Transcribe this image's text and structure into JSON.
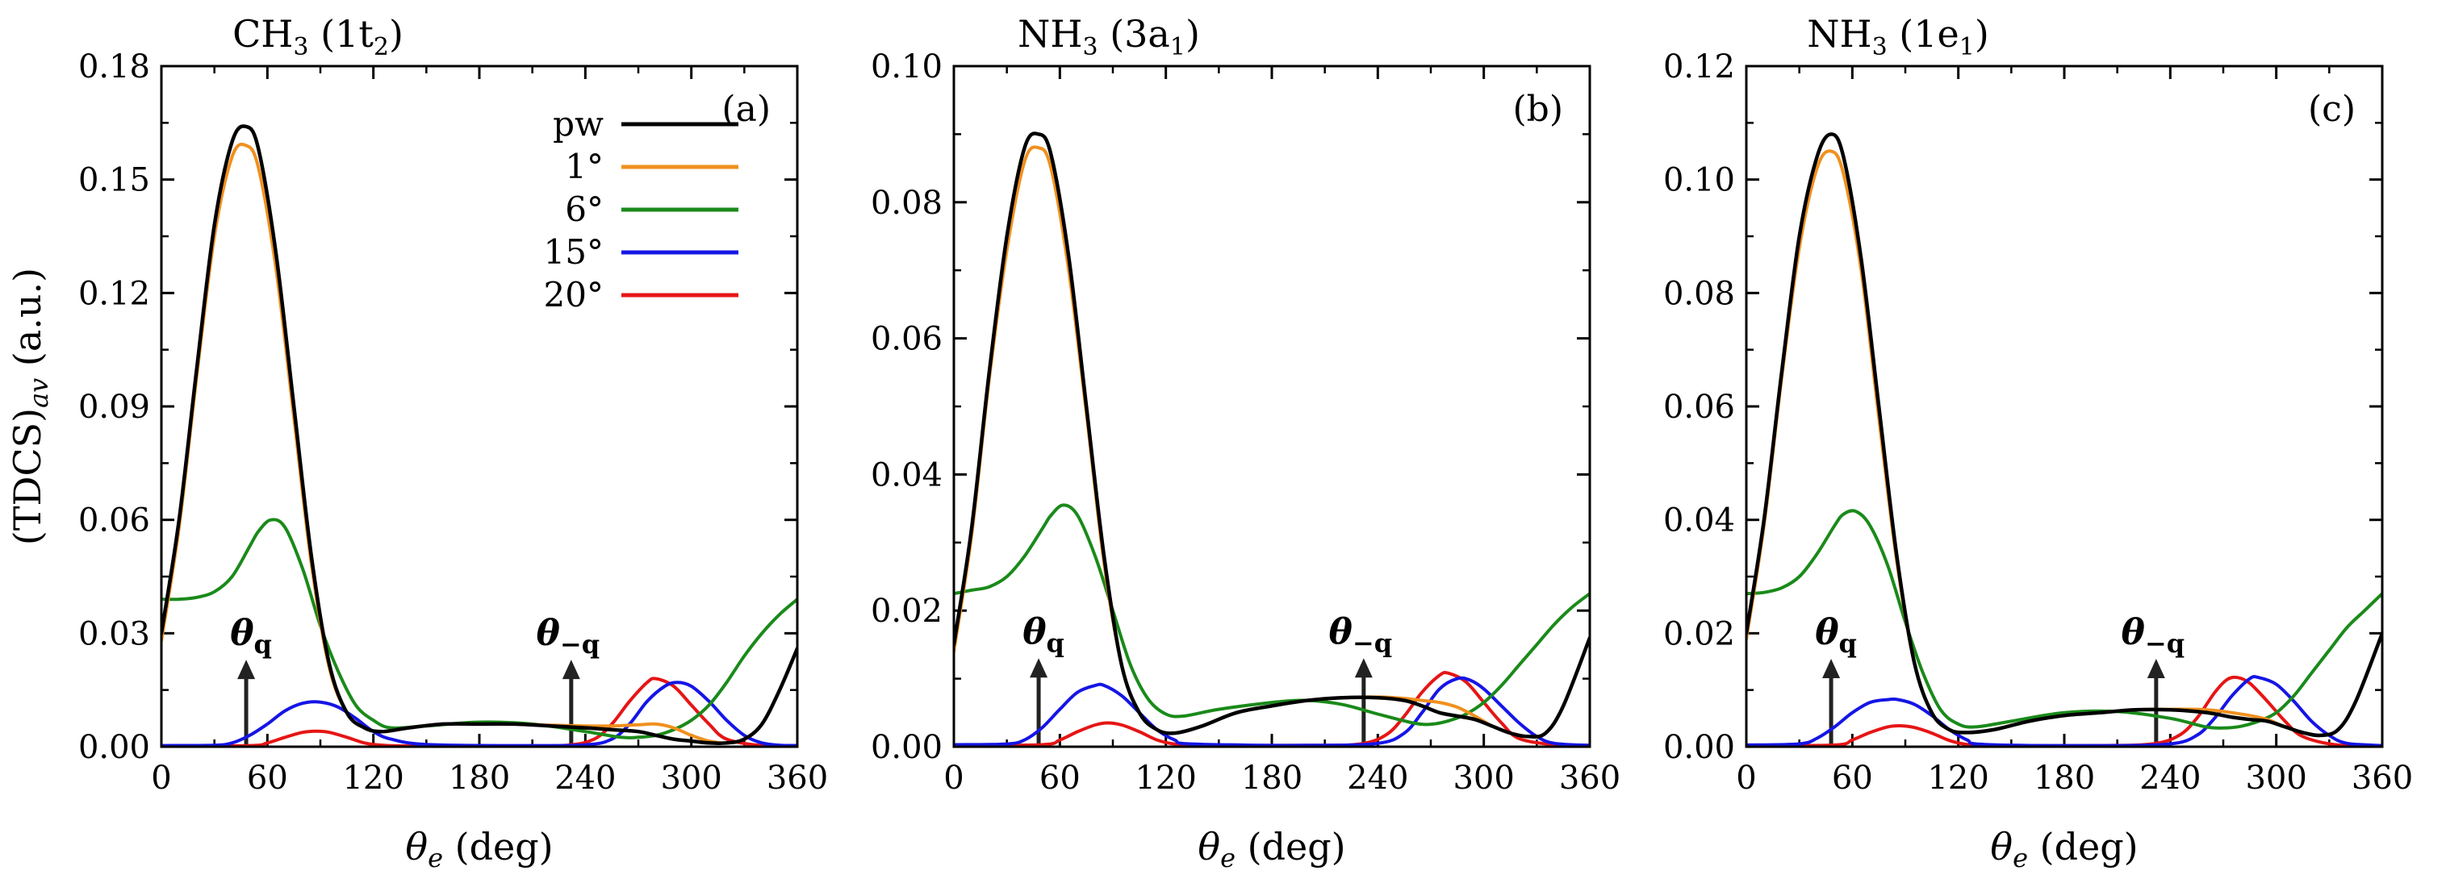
{
  "figure": {
    "ylabel": "(TDCS)",
    "ylabel_sub": "av",
    "ylabel_unit": "(a.u.)",
    "xlabel_symbol": "θ",
    "xlabel_sub": "e",
    "xlabel_unit": "(deg)",
    "anno_q": "θ",
    "anno_q_sub": "q",
    "anno_mq_sub": "−q"
  },
  "legend": {
    "entries": [
      "pw",
      "1°",
      "6°",
      "15°",
      "20°"
    ],
    "colors": [
      "#000000",
      "#f0901e",
      "#1a8a1a",
      "#1515e6",
      "#e61515"
    ]
  },
  "chart_data": [
    {
      "type": "line",
      "title": "CH",
      "title_sub": "3",
      "title_orbital": " (1t",
      "title_orbital_sub": "2",
      "title_close": ")",
      "panel_label": "(a)",
      "xlabel": "θe (deg)",
      "ylabel": "(TDCS)av (a.u.)",
      "xlim": [
        0,
        360
      ],
      "ylim": [
        0,
        0.18
      ],
      "xticks": [
        0,
        60,
        120,
        180,
        240,
        300,
        360
      ],
      "yticks": [
        "0.00",
        "0.03",
        "0.06",
        "0.09",
        "0.12",
        "0.15",
        "0.18"
      ],
      "arrows": [
        {
          "x": 48,
          "y_tip": 0.023,
          "label": "θq"
        },
        {
          "x": 232,
          "y_tip": 0.023,
          "label": "θ−q"
        }
      ],
      "series": [
        {
          "name": "pw",
          "x": [
            0,
            10,
            20,
            30,
            40,
            48,
            55,
            65,
            75,
            85,
            95,
            105,
            115,
            125,
            140,
            160,
            180,
            200,
            220,
            240,
            255,
            270,
            280,
            290,
            300,
            310,
            320,
            330,
            340,
            350,
            360
          ],
          "y": [
            0.03,
            0.06,
            0.1,
            0.138,
            0.16,
            0.164,
            0.158,
            0.13,
            0.09,
            0.05,
            0.022,
            0.009,
            0.005,
            0.004,
            0.005,
            0.006,
            0.006,
            0.006,
            0.0055,
            0.005,
            0.0045,
            0.004,
            0.003,
            0.002,
            0.0015,
            0.001,
            0.001,
            0.002,
            0.006,
            0.015,
            0.026
          ]
        },
        {
          "name": "1°",
          "x": [
            0,
            10,
            20,
            30,
            40,
            48,
            55,
            65,
            75,
            85,
            95,
            105,
            115,
            125,
            140,
            160,
            180,
            200,
            220,
            240,
            255,
            270,
            280,
            290,
            300,
            310,
            320,
            330,
            340,
            350,
            360
          ],
          "y": [
            0.028,
            0.058,
            0.098,
            0.135,
            0.156,
            0.159,
            0.153,
            0.126,
            0.087,
            0.048,
            0.021,
            0.009,
            0.005,
            0.004,
            0.005,
            0.006,
            0.006,
            0.006,
            0.0057,
            0.0055,
            0.0055,
            0.0058,
            0.006,
            0.005,
            0.003,
            0.0015,
            0.001,
            0.002,
            0.006,
            0.015,
            0.026
          ]
        },
        {
          "name": "6°",
          "x": [
            0,
            10,
            20,
            30,
            40,
            50,
            55,
            62,
            70,
            80,
            90,
            100,
            110,
            120,
            130,
            150,
            180,
            210,
            240,
            260,
            270,
            280,
            290,
            300,
            310,
            320,
            330,
            340,
            350,
            360
          ],
          "y": [
            0.039,
            0.039,
            0.0395,
            0.041,
            0.045,
            0.053,
            0.057,
            0.06,
            0.058,
            0.047,
            0.032,
            0.02,
            0.011,
            0.007,
            0.005,
            0.0055,
            0.0065,
            0.006,
            0.004,
            0.0025,
            0.0025,
            0.003,
            0.0045,
            0.007,
            0.011,
            0.017,
            0.024,
            0.03,
            0.035,
            0.039
          ]
        },
        {
          "name": "15°",
          "x": [
            0,
            30,
            40,
            50,
            60,
            70,
            80,
            90,
            100,
            110,
            120,
            130,
            150,
            200,
            240,
            255,
            265,
            275,
            285,
            292,
            300,
            310,
            320,
            330,
            340,
            350,
            360
          ],
          "y": [
            0.0003,
            0.0004,
            0.001,
            0.003,
            0.006,
            0.0095,
            0.0115,
            0.0118,
            0.0105,
            0.0075,
            0.004,
            0.002,
            0.0006,
            0.0003,
            0.0005,
            0.002,
            0.006,
            0.012,
            0.016,
            0.017,
            0.016,
            0.012,
            0.007,
            0.003,
            0.001,
            0.0004,
            0.0003
          ]
        },
        {
          "name": "20°",
          "x": [
            0,
            50,
            60,
            70,
            80,
            88,
            95,
            105,
            115,
            125,
            140,
            200,
            230,
            245,
            255,
            265,
            275,
            280,
            290,
            300,
            310,
            320,
            340,
            360
          ],
          "y": [
            0.0002,
            0.0003,
            0.001,
            0.0025,
            0.0038,
            0.0041,
            0.0038,
            0.0025,
            0.001,
            0.0004,
            0.0002,
            0.0002,
            0.0004,
            0.002,
            0.006,
            0.012,
            0.017,
            0.018,
            0.016,
            0.011,
            0.006,
            0.002,
            0.0003,
            0.0002
          ]
        }
      ]
    },
    {
      "type": "line",
      "title": "NH",
      "title_sub": "3",
      "title_orbital": " (3a",
      "title_orbital_sub": "1",
      "title_close": ")",
      "panel_label": "(b)",
      "xlabel": "θe (deg)",
      "ylabel": "",
      "xlim": [
        0,
        360
      ],
      "ylim": [
        0,
        0.1
      ],
      "xticks": [
        0,
        60,
        120,
        180,
        240,
        300,
        360
      ],
      "yticks": [
        "0.00",
        "0.02",
        "0.04",
        "0.06",
        "0.08",
        "0.10"
      ],
      "arrows": [
        {
          "x": 48,
          "y_tip": 0.013,
          "label": "θq"
        },
        {
          "x": 232,
          "y_tip": 0.013,
          "label": "θ−q"
        }
      ],
      "series": [
        {
          "name": "pw",
          "x": [
            0,
            10,
            20,
            30,
            40,
            48,
            55,
            65,
            75,
            85,
            95,
            105,
            115,
            125,
            140,
            160,
            180,
            200,
            220,
            240,
            255,
            265,
            275,
            285,
            295,
            305,
            315,
            325,
            335,
            345,
            360
          ],
          "y": [
            0.015,
            0.032,
            0.055,
            0.075,
            0.088,
            0.09,
            0.087,
            0.072,
            0.05,
            0.028,
            0.012,
            0.005,
            0.0025,
            0.002,
            0.003,
            0.005,
            0.006,
            0.0068,
            0.0072,
            0.0072,
            0.0068,
            0.006,
            0.005,
            0.0045,
            0.004,
            0.003,
            0.002,
            0.0015,
            0.002,
            0.006,
            0.016
          ]
        },
        {
          "name": "1°",
          "x": [
            0,
            10,
            20,
            30,
            40,
            48,
            55,
            65,
            75,
            85,
            95,
            105,
            115,
            125,
            140,
            160,
            180,
            200,
            220,
            240,
            255,
            265,
            275,
            285,
            295,
            305,
            315,
            325,
            335,
            345,
            360
          ],
          "y": [
            0.014,
            0.031,
            0.054,
            0.073,
            0.086,
            0.088,
            0.085,
            0.07,
            0.049,
            0.027,
            0.012,
            0.005,
            0.0025,
            0.002,
            0.003,
            0.005,
            0.006,
            0.0068,
            0.0072,
            0.0073,
            0.0071,
            0.0068,
            0.0065,
            0.0058,
            0.0045,
            0.003,
            0.002,
            0.0015,
            0.002,
            0.006,
            0.016
          ]
        },
        {
          "name": "6°",
          "x": [
            0,
            10,
            20,
            30,
            40,
            50,
            55,
            62,
            70,
            80,
            90,
            100,
            110,
            120,
            130,
            150,
            180,
            200,
            220,
            240,
            260,
            270,
            280,
            290,
            300,
            310,
            320,
            330,
            340,
            350,
            360
          ],
          "y": [
            0.0225,
            0.023,
            0.0235,
            0.025,
            0.028,
            0.032,
            0.034,
            0.0355,
            0.034,
            0.028,
            0.02,
            0.012,
            0.007,
            0.0048,
            0.0045,
            0.0055,
            0.0065,
            0.0068,
            0.0062,
            0.0048,
            0.0035,
            0.0033,
            0.0038,
            0.0048,
            0.0065,
            0.009,
            0.012,
            0.015,
            0.018,
            0.0205,
            0.0225
          ]
        },
        {
          "name": "15°",
          "x": [
            0,
            30,
            40,
            50,
            60,
            70,
            80,
            85,
            95,
            105,
            115,
            125,
            135,
            200,
            240,
            255,
            265,
            275,
            285,
            292,
            300,
            310,
            320,
            330,
            340,
            360
          ],
          "y": [
            0.0003,
            0.0004,
            0.001,
            0.0028,
            0.0055,
            0.008,
            0.009,
            0.009,
            0.0075,
            0.005,
            0.0025,
            0.001,
            0.0004,
            0.0002,
            0.0005,
            0.002,
            0.005,
            0.0085,
            0.01,
            0.0098,
            0.0085,
            0.006,
            0.0035,
            0.0015,
            0.0005,
            0.0002
          ]
        },
        {
          "name": "20°",
          "x": [
            0,
            50,
            60,
            70,
            80,
            87,
            95,
            105,
            115,
            125,
            140,
            200,
            230,
            245,
            255,
            265,
            275,
            280,
            290,
            300,
            310,
            320,
            340,
            360
          ],
          "y": [
            0.0002,
            0.0003,
            0.001,
            0.0022,
            0.0032,
            0.0035,
            0.0032,
            0.0022,
            0.001,
            0.0004,
            0.0002,
            0.0002,
            0.0004,
            0.0018,
            0.0045,
            0.008,
            0.0105,
            0.0108,
            0.0095,
            0.0065,
            0.0035,
            0.0012,
            0.0003,
            0.0002
          ]
        }
      ]
    },
    {
      "type": "line",
      "title": "NH",
      "title_sub": "3",
      "title_orbital": " (1e",
      "title_orbital_sub": "1",
      "title_close": ")",
      "panel_label": "(c)",
      "xlabel": "θe (deg)",
      "ylabel": "",
      "xlim": [
        0,
        360
      ],
      "ylim": [
        0,
        0.12
      ],
      "xticks": [
        0,
        60,
        120,
        180,
        240,
        300,
        360
      ],
      "yticks": [
        "0.00",
        "0.02",
        "0.04",
        "0.06",
        "0.08",
        "0.10",
        "0.12"
      ],
      "arrows": [
        {
          "x": 48,
          "y_tip": 0.0155,
          "label": "θq"
        },
        {
          "x": 232,
          "y_tip": 0.0155,
          "label": "θ−q"
        }
      ],
      "series": [
        {
          "name": "pw",
          "x": [
            0,
            10,
            20,
            30,
            40,
            48,
            55,
            65,
            75,
            85,
            95,
            105,
            115,
            125,
            140,
            160,
            180,
            200,
            220,
            240,
            255,
            265,
            275,
            285,
            295,
            305,
            315,
            325,
            335,
            345,
            360
          ],
          "y": [
            0.02,
            0.04,
            0.066,
            0.09,
            0.104,
            0.108,
            0.104,
            0.086,
            0.06,
            0.034,
            0.015,
            0.006,
            0.003,
            0.0025,
            0.003,
            0.0045,
            0.0055,
            0.006,
            0.0065,
            0.0065,
            0.0062,
            0.0058,
            0.0052,
            0.0048,
            0.0045,
            0.0035,
            0.0025,
            0.002,
            0.003,
            0.008,
            0.02
          ]
        },
        {
          "name": "1°",
          "x": [
            0,
            10,
            20,
            30,
            40,
            48,
            55,
            65,
            75,
            85,
            95,
            105,
            115,
            125,
            140,
            160,
            180,
            200,
            220,
            240,
            255,
            265,
            275,
            285,
            295,
            305,
            315,
            325,
            335,
            345,
            360
          ],
          "y": [
            0.019,
            0.039,
            0.065,
            0.088,
            0.102,
            0.105,
            0.101,
            0.084,
            0.058,
            0.033,
            0.015,
            0.006,
            0.003,
            0.0025,
            0.003,
            0.0045,
            0.0055,
            0.006,
            0.0065,
            0.0066,
            0.0066,
            0.0064,
            0.006,
            0.0055,
            0.0048,
            0.0035,
            0.0025,
            0.002,
            0.003,
            0.008,
            0.02
          ]
        },
        {
          "name": "6°",
          "x": [
            0,
            10,
            20,
            30,
            40,
            50,
            55,
            62,
            70,
            80,
            90,
            100,
            110,
            120,
            130,
            150,
            180,
            210,
            240,
            260,
            270,
            280,
            290,
            300,
            310,
            320,
            330,
            340,
            350,
            360
          ],
          "y": [
            0.027,
            0.0272,
            0.028,
            0.03,
            0.034,
            0.039,
            0.041,
            0.0415,
            0.039,
            0.032,
            0.022,
            0.013,
            0.0065,
            0.004,
            0.0035,
            0.0045,
            0.006,
            0.0062,
            0.005,
            0.0035,
            0.0033,
            0.0036,
            0.0045,
            0.006,
            0.009,
            0.013,
            0.017,
            0.021,
            0.024,
            0.027
          ]
        },
        {
          "name": "15°",
          "x": [
            0,
            30,
            40,
            50,
            60,
            70,
            80,
            86,
            95,
            105,
            115,
            125,
            135,
            200,
            240,
            255,
            265,
            275,
            285,
            290,
            300,
            310,
            320,
            330,
            340,
            360
          ],
          "y": [
            0.0003,
            0.0005,
            0.0015,
            0.0035,
            0.006,
            0.0078,
            0.0083,
            0.0083,
            0.0075,
            0.0055,
            0.003,
            0.0012,
            0.0004,
            0.0002,
            0.0005,
            0.002,
            0.005,
            0.009,
            0.012,
            0.0122,
            0.011,
            0.008,
            0.0045,
            0.002,
            0.0006,
            0.0002
          ]
        },
        {
          "name": "20°",
          "x": [
            0,
            50,
            60,
            70,
            80,
            87,
            95,
            105,
            115,
            125,
            140,
            200,
            230,
            245,
            255,
            265,
            272,
            278,
            285,
            295,
            305,
            315,
            335,
            360
          ],
          "y": [
            0.0002,
            0.0003,
            0.0012,
            0.0025,
            0.0035,
            0.0037,
            0.0034,
            0.0024,
            0.0011,
            0.0004,
            0.0002,
            0.0002,
            0.0005,
            0.002,
            0.005,
            0.0095,
            0.0118,
            0.0122,
            0.0112,
            0.008,
            0.0045,
            0.0018,
            0.0003,
            0.0002
          ]
        }
      ]
    }
  ]
}
